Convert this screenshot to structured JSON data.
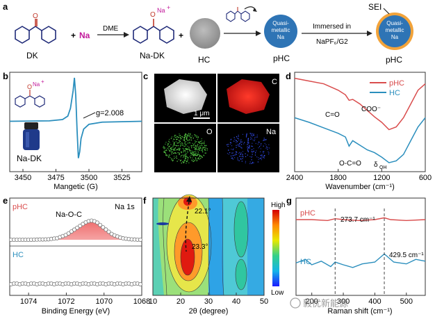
{
  "panel_labels": {
    "a": "a",
    "b": "b",
    "c": "c",
    "d": "d",
    "e": "e",
    "f": "f",
    "g": "g"
  },
  "scheme": {
    "dk_label": "DK",
    "plus1": "+",
    "na": "Na",
    "arrow1": "DME",
    "nadk_label": "Na-DK",
    "na_superscript": "Na",
    "na_plus": "+",
    "radical_o": "O",
    "plus2": "+",
    "hc_label": "HC",
    "qm_line1": "Quasi-",
    "qm_line2": "metallic",
    "qm_line3": "Na",
    "phc_label": "pHC",
    "arrow2_top": "Immersed in",
    "arrow2_bottom": "NaPF₆/G2",
    "sei_label": "SEI",
    "phc2_label": "pHC"
  },
  "colors": {
    "blue": "#2e74b5",
    "red": "#d94c4c",
    "teal": "#2a8ebd",
    "orange": "#f2a33a",
    "magenta": "#c2189a",
    "navy": "#1f2a78"
  },
  "chart_data": [
    {
      "type": "line",
      "panel": "b",
      "xlabel": "Mangetic (G)",
      "xticks": [
        3450,
        3475,
        3500,
        3525
      ],
      "xlim": [
        3440,
        3540
      ],
      "annotation": "g=2.008",
      "inset_label": "Na-DK",
      "series": [
        {
          "x": [
            3440,
            3470,
            3480,
            3484,
            3486,
            3488,
            3489,
            3490,
            3491,
            3492,
            3493,
            3494,
            3496,
            3500,
            3510,
            3540
          ],
          "y": [
            0,
            0.01,
            0.04,
            0.12,
            0.3,
            0.7,
            1.0,
            0.6,
            -0.2,
            -0.85,
            -0.7,
            -0.4,
            -0.18,
            -0.07,
            -0.02,
            0
          ]
        }
      ]
    },
    {
      "type": "line",
      "panel": "d",
      "xlabel": "Wavenumber (cm⁻¹)",
      "xticks": [
        2400,
        1800,
        1200,
        600
      ],
      "xlim": [
        2400,
        600
      ],
      "annotations": [
        "C=O",
        "COO⁻",
        "O-C=O",
        "δ",
        "OH"
      ],
      "series": [
        {
          "name": "pHC",
          "x": [
            2400,
            2200,
            2000,
            1800,
            1700,
            1650,
            1600,
            1500,
            1400,
            1300,
            1200,
            1100,
            1000,
            900,
            800,
            700,
            600
          ],
          "y": [
            0.98,
            0.95,
            0.92,
            0.85,
            0.8,
            0.74,
            0.75,
            0.7,
            0.63,
            0.56,
            0.5,
            0.42,
            0.45,
            0.55,
            0.7,
            0.85,
            0.92
          ]
        },
        {
          "name": "HC",
          "x": [
            2400,
            2200,
            2000,
            1800,
            1700,
            1650,
            1600,
            1500,
            1400,
            1300,
            1200,
            1100,
            1000,
            900,
            800,
            700,
            600
          ],
          "y": [
            0.55,
            0.5,
            0.44,
            0.38,
            0.34,
            0.24,
            0.3,
            0.25,
            0.2,
            0.17,
            0.12,
            0.06,
            0.08,
            0.15,
            0.3,
            0.45,
            0.55
          ]
        }
      ]
    },
    {
      "type": "line",
      "panel": "e",
      "xlabel": "Binding Energy (eV)",
      "title_right": "Na 1s",
      "xticks": [
        1074,
        1072,
        1070,
        1068
      ],
      "xlim": [
        1075,
        1068
      ],
      "peak_label": "Na-O-C",
      "series": [
        {
          "name": "pHC",
          "x": [
            1075,
            1074,
            1073,
            1072.5,
            1072,
            1071.5,
            1071,
            1070.7,
            1070.4,
            1070,
            1069.5,
            1069,
            1068.5,
            1068
          ],
          "y": [
            0.0,
            0.0,
            0.02,
            0.08,
            0.25,
            0.55,
            0.85,
            0.96,
            0.9,
            0.6,
            0.25,
            0.08,
            0.02,
            0.0
          ]
        },
        {
          "name": "HC",
          "x": [
            1075,
            1074,
            1073,
            1072,
            1071,
            1070,
            1069,
            1068
          ],
          "y": [
            0,
            0,
            0,
            0,
            0,
            0,
            0,
            0
          ]
        }
      ]
    },
    {
      "type": "heatmap",
      "panel": "f",
      "xlabel": "2θ (degree)",
      "xticks": [
        10,
        20,
        30,
        40,
        50
      ],
      "colorbar_high": "High",
      "colorbar_low": "Low",
      "annotations": [
        "22.1°",
        "23.3°"
      ]
    },
    {
      "type": "line",
      "panel": "g",
      "xlabel": "Raman shift (cm⁻¹)",
      "xticks": [
        200,
        300,
        400,
        500
      ],
      "xlim": [
        150,
        560
      ],
      "annotations": [
        "273.7 cm⁻¹",
        "429.5 cm⁻¹"
      ],
      "series": [
        {
          "name": "pHC",
          "x": [
            150,
            200,
            250,
            274,
            300,
            350,
            400,
            430,
            450,
            500,
            560
          ],
          "y": [
            0.8,
            0.8,
            0.79,
            0.81,
            0.8,
            0.79,
            0.8,
            0.82,
            0.8,
            0.79,
            0.8
          ]
        },
        {
          "name": "HC",
          "x": [
            150,
            180,
            200,
            230,
            260,
            274,
            300,
            330,
            360,
            400,
            430,
            460,
            500,
            530,
            560
          ],
          "y": [
            0.32,
            0.36,
            0.3,
            0.34,
            0.28,
            0.33,
            0.3,
            0.27,
            0.31,
            0.33,
            0.42,
            0.33,
            0.31,
            0.36,
            0.34
          ]
        }
      ]
    }
  ],
  "eds": {
    "scale_bar": "1 μm",
    "c_label": "C",
    "o_label": "O",
    "na_label": "Na"
  },
  "watermark": "毅优新能源"
}
